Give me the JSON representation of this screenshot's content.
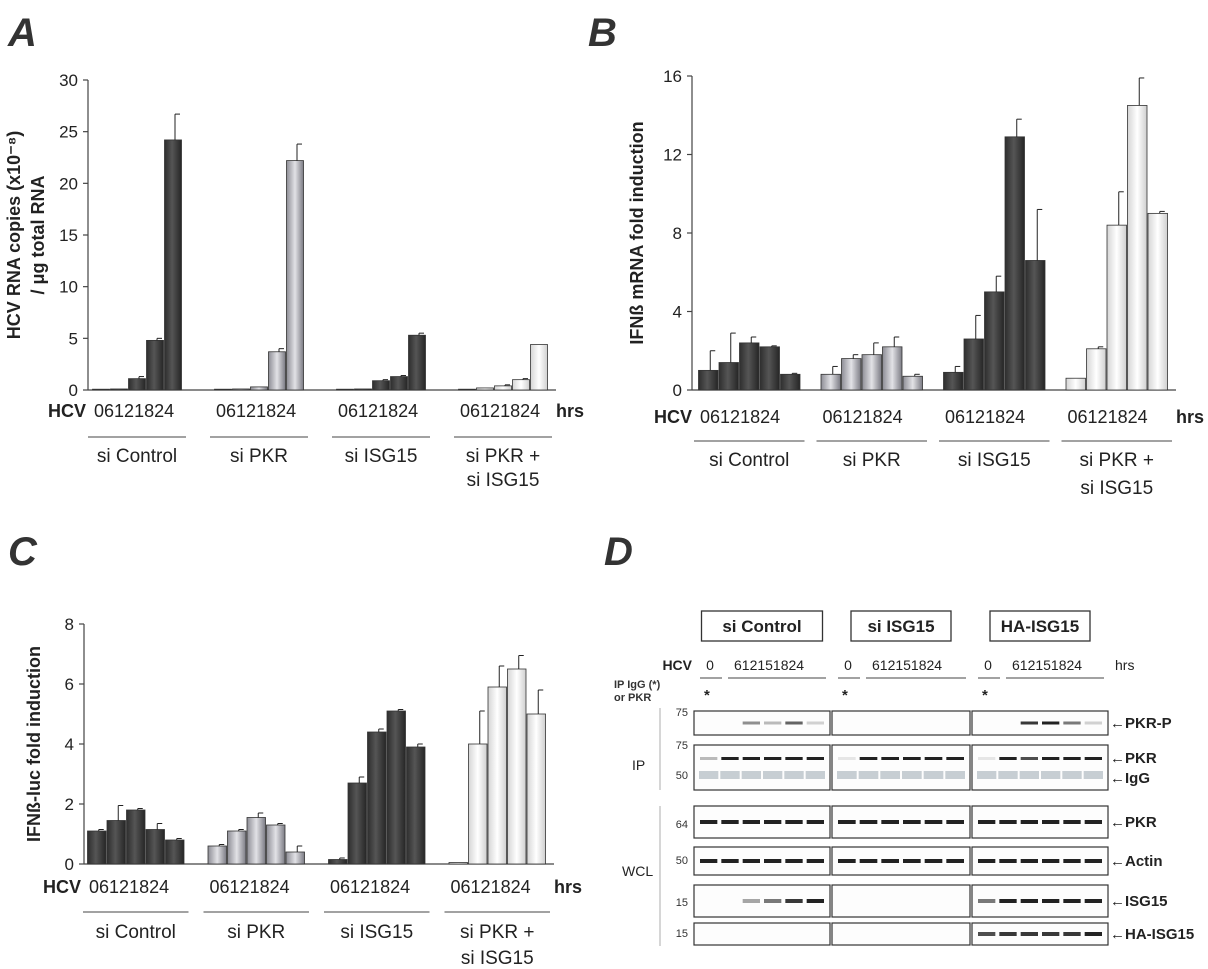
{
  "panels": [
    {
      "letter": "A"
    },
    {
      "letter": "B"
    },
    {
      "letter": "C"
    },
    {
      "letter": "D"
    }
  ],
  "chart_data": [
    {
      "panel": "A",
      "type": "bar",
      "ylabel_lines": [
        "HCV RNA copies (x10⁻⁸)",
        "/ μg total RNA"
      ],
      "ylim": [
        0,
        30
      ],
      "yticks": [
        0,
        5,
        10,
        15,
        20,
        25,
        30
      ],
      "x_prefix": "HCV",
      "x_suffix": "hrs",
      "timepoints": [
        "0",
        "6",
        "12",
        "18",
        "24"
      ],
      "groups": [
        {
          "name": "si Control",
          "name_lines": [
            "si Control"
          ],
          "style": "dark",
          "values": [
            0.05,
            0.1,
            1.1,
            4.8,
            24.2
          ],
          "errors": [
            0,
            0,
            0.2,
            0.2,
            2.5
          ]
        },
        {
          "name": "si PKR",
          "name_lines": [
            "si PKR"
          ],
          "style": "light",
          "values": [
            0.05,
            0.1,
            0.3,
            3.7,
            22.2
          ],
          "errors": [
            0,
            0,
            0,
            0.3,
            1.6
          ]
        },
        {
          "name": "si ISG15",
          "name_lines": [
            "si ISG15"
          ],
          "style": "dark",
          "values": [
            0.05,
            0.1,
            0.9,
            1.3,
            5.3
          ],
          "errors": [
            0,
            0,
            0.1,
            0.1,
            0.2
          ]
        },
        {
          "name": "si PKR + si ISG15",
          "name_lines": [
            "si PKR +",
            "si ISG15"
          ],
          "style": "white",
          "values": [
            0.05,
            0.2,
            0.4,
            1.0,
            4.4
          ],
          "errors": [
            0,
            0,
            0.1,
            0.1,
            0
          ]
        }
      ]
    },
    {
      "panel": "B",
      "type": "bar",
      "ylabel_lines": [
        "IFNß mRNA fold induction"
      ],
      "ylim": [
        0,
        16
      ],
      "yticks": [
        0,
        4,
        8,
        12,
        16
      ],
      "x_prefix": "HCV",
      "x_suffix": "hrs",
      "timepoints": [
        "0",
        "6",
        "12",
        "18",
        "24"
      ],
      "groups": [
        {
          "name": "si Control",
          "name_lines": [
            "si Control"
          ],
          "style": "dark",
          "values": [
            1.0,
            1.4,
            2.4,
            2.2,
            0.8
          ],
          "errors": [
            1.0,
            1.5,
            0.3,
            0.05,
            0.05
          ]
        },
        {
          "name": "si PKR",
          "name_lines": [
            "si PKR"
          ],
          "style": "light",
          "values": [
            0.8,
            1.6,
            1.8,
            2.2,
            0.7
          ],
          "errors": [
            0.4,
            0.2,
            0.6,
            0.5,
            0.1
          ]
        },
        {
          "name": "si ISG15",
          "name_lines": [
            "si ISG15"
          ],
          "style": "dark",
          "values": [
            0.9,
            2.6,
            5.0,
            12.9,
            6.6
          ],
          "errors": [
            0.3,
            1.2,
            0.8,
            0.9,
            2.6
          ]
        },
        {
          "name": "si PKR + si ISG15",
          "name_lines": [
            "si PKR +",
            "si ISG15"
          ],
          "style": "white",
          "values": [
            0.6,
            2.1,
            8.4,
            14.5,
            9.0
          ],
          "errors": [
            0,
            0.1,
            1.7,
            1.4,
            0.1
          ]
        }
      ]
    },
    {
      "panel": "C",
      "type": "bar",
      "ylabel_lines": [
        "IFNß-luc fold induction"
      ],
      "ylim": [
        0,
        8
      ],
      "yticks": [
        0,
        2,
        4,
        6,
        8
      ],
      "x_prefix": "HCV",
      "x_suffix": "hrs",
      "timepoints": [
        "0",
        "6",
        "12",
        "18",
        "24"
      ],
      "groups": [
        {
          "name": "si Control",
          "name_lines": [
            "si Control"
          ],
          "style": "dark",
          "values": [
            1.1,
            1.45,
            1.8,
            1.15,
            0.8
          ],
          "errors": [
            0.05,
            0.5,
            0.05,
            0.2,
            0.05
          ]
        },
        {
          "name": "si PKR",
          "name_lines": [
            "si PKR"
          ],
          "style": "light",
          "values": [
            0.6,
            1.1,
            1.55,
            1.3,
            0.4
          ],
          "errors": [
            0.05,
            0.05,
            0.15,
            0.05,
            0.2
          ]
        },
        {
          "name": "si ISG15",
          "name_lines": [
            "si ISG15"
          ],
          "style": "dark",
          "values": [
            0.15,
            2.7,
            4.4,
            5.1,
            3.9
          ],
          "errors": [
            0.05,
            0.2,
            0.1,
            0.05,
            0.1
          ]
        },
        {
          "name": "si PKR + si ISG15",
          "name_lines": [
            "si PKR +",
            "si ISG15"
          ],
          "style": "white",
          "values": [
            0.05,
            4.0,
            5.9,
            6.5,
            5.0
          ],
          "errors": [
            0,
            1.1,
            0.7,
            0.45,
            0.8
          ]
        }
      ]
    }
  ],
  "blot": {
    "groups": [
      "si Control",
      "si ISG15",
      "HA-ISG15"
    ],
    "hcv_label": "HCV",
    "hrs_label": "hrs",
    "timepoints": [
      "0",
      "6",
      "12",
      "15",
      "18",
      "24"
    ],
    "ip_caption_lines": [
      "IP IgG (*)",
      "or PKR"
    ],
    "asterisk": "*",
    "section_labels": {
      "ip": "IP",
      "wcl": "WCL"
    },
    "rows": [
      {
        "name": "PKR-P",
        "mw": [
          "75"
        ],
        "section": "ip"
      },
      {
        "name": "PKR / IgG",
        "mw": [
          "75",
          "50"
        ],
        "section": "ip",
        "labels": [
          "PKR",
          "IgG"
        ]
      },
      {
        "name": "PKR",
        "mw": [
          "64"
        ],
        "section": "wcl"
      },
      {
        "name": "Actin",
        "mw": [
          "50"
        ],
        "section": "wcl"
      },
      {
        "name": "ISG15",
        "mw": [
          "15"
        ],
        "section": "wcl"
      },
      {
        "name": "HA-ISG15",
        "mw": [
          "15"
        ],
        "section": "wcl"
      }
    ],
    "arrow": "←"
  }
}
